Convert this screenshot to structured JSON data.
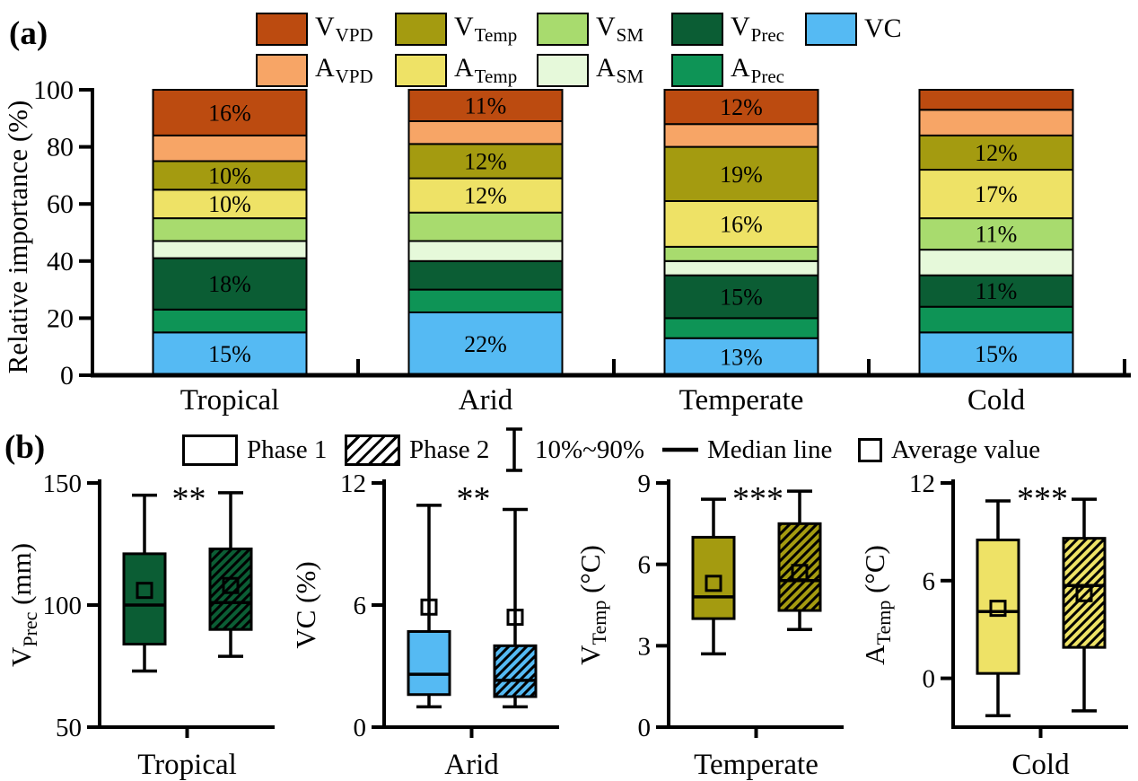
{
  "panel_a": {
    "tag": "(a)",
    "ylabel": "Relative importance (%)",
    "legend": {
      "rows": [
        [
          {
            "main": "V",
            "sub": "VPD",
            "color": "#BC4B10"
          },
          {
            "main": "V",
            "sub": "Temp",
            "color": "#A49B10"
          },
          {
            "main": "V",
            "sub": "SM",
            "color": "#A8DB6E"
          },
          {
            "main": "V",
            "sub": "Prec",
            "color": "#0B5D34"
          },
          {
            "main": "VC",
            "sub": "",
            "color": "#55BAF3"
          }
        ],
        [
          {
            "main": "A",
            "sub": "VPD",
            "color": "#F7A566"
          },
          {
            "main": "A",
            "sub": "Temp",
            "color": "#EEE266"
          },
          {
            "main": "A",
            "sub": "SM",
            "color": "#E6F9DA"
          },
          {
            "main": "A",
            "sub": "Prec",
            "color": "#0E9456"
          }
        ]
      ]
    }
  },
  "panel_b": {
    "tag": "(b)",
    "legend": [
      {
        "icon": "open-box",
        "label": "Phase 1"
      },
      {
        "icon": "hatched-box",
        "label": "Phase 2"
      },
      {
        "icon": "whisker",
        "label": "10%~90%"
      },
      {
        "icon": "median-line",
        "label": "Median line"
      },
      {
        "icon": "square",
        "label": "Average value"
      }
    ]
  },
  "chart_data": [
    {
      "type": "bar",
      "stacked": true,
      "ylabel": "Relative importance (%)",
      "ylim": [
        0,
        100
      ],
      "yticks": [
        0,
        20,
        40,
        60,
        80,
        100
      ],
      "categories": [
        "Tropical",
        "Arid",
        "Temperate",
        "Cold"
      ],
      "series": [
        {
          "name": "VC",
          "color": "#55BAF3",
          "values": [
            15,
            22,
            13,
            15
          ],
          "labels": [
            "15%",
            "22%",
            "13%",
            "15%"
          ],
          "label_color": "#000000"
        },
        {
          "name": "A_Prec",
          "color": "#0E9456",
          "values": [
            8,
            8,
            7,
            9
          ],
          "labels": [
            "",
            "",
            "",
            ""
          ],
          "label_color": "#000000"
        },
        {
          "name": "V_Prec",
          "color": "#0B5D34",
          "values": [
            18,
            10,
            15,
            11
          ],
          "labels": [
            "18%",
            "",
            "15%",
            "11%"
          ],
          "label_color": "#FFFFFF"
        },
        {
          "name": "A_SM",
          "color": "#E6F9DA",
          "values": [
            6,
            7,
            5,
            9
          ],
          "labels": [
            "",
            "",
            "",
            ""
          ],
          "label_color": "#000000"
        },
        {
          "name": "V_SM",
          "color": "#A8DB6E",
          "values": [
            8,
            10,
            5,
            11
          ],
          "labels": [
            "",
            "",
            "",
            "11%"
          ],
          "label_color": "#000000"
        },
        {
          "name": "A_Temp",
          "color": "#EEE266",
          "values": [
            10,
            12,
            16,
            17
          ],
          "labels": [
            "10%",
            "12%",
            "16%",
            "17%"
          ],
          "label_color": "#000000"
        },
        {
          "name": "V_Temp",
          "color": "#A49B10",
          "values": [
            10,
            12,
            19,
            12
          ],
          "labels": [
            "10%",
            "12%",
            "19%",
            "12%"
          ],
          "label_color": "#000000"
        },
        {
          "name": "A_VPD",
          "color": "#F7A566",
          "values": [
            9,
            8,
            8,
            9
          ],
          "labels": [
            "",
            "",
            "",
            ""
          ],
          "label_color": "#000000"
        },
        {
          "name": "V_VPD",
          "color": "#BC4B10",
          "values": [
            16,
            11,
            12,
            7
          ],
          "labels": [
            "16%",
            "11%",
            "12%",
            ""
          ],
          "label_color": "#FFFFFF"
        }
      ]
    },
    {
      "type": "box",
      "panels": [
        {
          "category": "Tropical",
          "ylabel_main": "V",
          "ylabel_sub": "Prec",
          "ylabel_unit": " (mm)",
          "ylim": [
            50,
            150
          ],
          "yticks": [
            50,
            100,
            150
          ],
          "significance": "**",
          "color": "#0B5D34",
          "boxes": [
            {
              "phase": "Phase 1",
              "hatch": false,
              "whisker_low": 73,
              "q1": 84,
              "median": 100,
              "mean": 106,
              "q3": 121,
              "whisker_high": 145
            },
            {
              "phase": "Phase 2",
              "hatch": true,
              "whisker_low": 79,
              "q1": 90,
              "median": 101,
              "mean": 108,
              "q3": 123,
              "whisker_high": 146
            }
          ]
        },
        {
          "category": "Arid",
          "ylabel_main": "VC",
          "ylabel_sub": "",
          "ylabel_unit": " (%)",
          "ylim": [
            0,
            12
          ],
          "yticks": [
            0,
            6,
            12
          ],
          "significance": "**",
          "color": "#55BAF3",
          "boxes": [
            {
              "phase": "Phase 1",
              "hatch": false,
              "whisker_low": 1.0,
              "q1": 1.6,
              "median": 2.6,
              "mean": 5.9,
              "q3": 4.7,
              "whisker_high": 10.9
            },
            {
              "phase": "Phase 2",
              "hatch": true,
              "whisker_low": 1.0,
              "q1": 1.5,
              "median": 2.3,
              "mean": 5.4,
              "q3": 4.0,
              "whisker_high": 10.7
            }
          ]
        },
        {
          "category": "Temperate",
          "ylabel_main": "V",
          "ylabel_sub": "Temp",
          "ylabel_unit": " (°C)",
          "ylim": [
            0,
            9
          ],
          "yticks": [
            0,
            3,
            6,
            9
          ],
          "significance": "***",
          "color": "#A49B10",
          "boxes": [
            {
              "phase": "Phase 1",
              "hatch": false,
              "whisker_low": 2.7,
              "q1": 4.0,
              "median": 4.8,
              "mean": 5.3,
              "q3": 7.0,
              "whisker_high": 8.4
            },
            {
              "phase": "Phase 2",
              "hatch": true,
              "whisker_low": 3.6,
              "q1": 4.3,
              "median": 5.4,
              "mean": 5.7,
              "q3": 7.5,
              "whisker_high": 8.7
            }
          ]
        },
        {
          "category": "Cold",
          "ylabel_main": "A",
          "ylabel_sub": "Temp",
          "ylabel_unit": " (°C)",
          "ylim": [
            -3,
            12
          ],
          "yticks": [
            0,
            6,
            12
          ],
          "significance": "***",
          "color": "#EEE266",
          "boxes": [
            {
              "phase": "Phase 1",
              "hatch": false,
              "whisker_low": -2.3,
              "q1": 0.3,
              "median": 4.1,
              "mean": 4.3,
              "q3": 8.5,
              "whisker_high": 10.9
            },
            {
              "phase": "Phase 2",
              "hatch": true,
              "whisker_low": -2.0,
              "q1": 1.9,
              "median": 5.7,
              "mean": 5.2,
              "q3": 8.6,
              "whisker_high": 11.0
            }
          ]
        }
      ]
    }
  ]
}
